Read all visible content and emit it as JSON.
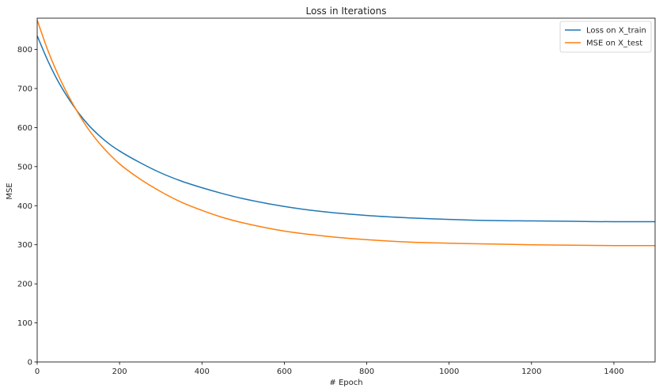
{
  "chart_data": {
    "type": "line",
    "title": "Loss in Iterations",
    "xlabel": "# Epoch",
    "ylabel": "MSE",
    "xlim": [
      0,
      1500
    ],
    "ylim": [
      0,
      880
    ],
    "xticks": [
      0,
      200,
      400,
      600,
      800,
      1000,
      1200,
      1400
    ],
    "yticks": [
      0,
      100,
      200,
      300,
      400,
      500,
      600,
      700,
      800
    ],
    "grid": false,
    "legend_position": "top-right",
    "x": [
      0,
      25,
      50,
      75,
      100,
      125,
      150,
      175,
      200,
      250,
      300,
      350,
      400,
      450,
      500,
      600,
      700,
      800,
      900,
      1000,
      1100,
      1200,
      1300,
      1400,
      1500
    ],
    "series": [
      {
        "name": "Loss on X_train",
        "color": "#1f77b4",
        "values": [
          835,
          773,
          720,
          676,
          638,
          606,
          580,
          558,
          540,
          510,
          484,
          463,
          446,
          431,
          418,
          398,
          384,
          375,
          369,
          365,
          362,
          361,
          360,
          359,
          359
        ]
      },
      {
        "name": "MSE on X_test",
        "color": "#ff7f0e",
        "values": [
          875,
          800,
          737,
          683,
          636,
          595,
          561,
          532,
          507,
          468,
          436,
          409,
          388,
          370,
          356,
          335,
          322,
          313,
          307,
          304,
          302,
          300,
          299,
          298,
          298
        ]
      }
    ]
  }
}
